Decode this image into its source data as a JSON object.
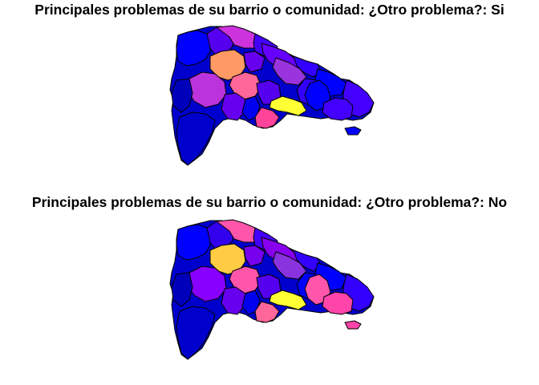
{
  "panels": [
    {
      "title": "Principales problemas de su barrio o comunidad: ¿Otro problema?: Si",
      "fills": {
        "base": "#0000cc",
        "nw1": "#0000ff",
        "nw2": "#5500ee",
        "north1": "#cc33dd",
        "north2": "#4400ff",
        "ne1": "#6600ff",
        "ne2": "#3300ff",
        "center_n": "#ff9966",
        "cn2": "#6600ee",
        "center_e": "#9933dd",
        "east1": "#0000ff",
        "east2": "#4400ff",
        "east3": "#3300ff",
        "west_c": "#bb33dd",
        "center": "#ff6699",
        "center_s": "#6600ee",
        "south1": "#0000ee",
        "south2": "#5500ee",
        "capital": "#ffff33",
        "southc": "#ff4499",
        "se1": "#0000ff",
        "se2": "#4400ff",
        "west_s": "#0000bb",
        "sw": "#0000cc",
        "saona": "#0000ff"
      }
    },
    {
      "title": "Principales problemas de su barrio o comunidad: ¿Otro problema?: No",
      "fills": {
        "base": "#0000cc",
        "nw1": "#0000ff",
        "nw2": "#3300ee",
        "north1": "#ff55aa",
        "north2": "#4400ff",
        "ne1": "#8800ee",
        "ne2": "#3300ff",
        "center_n": "#ffcc44",
        "cn2": "#7700ee",
        "center_e": "#8833dd",
        "east1": "#0000ff",
        "east2": "#3300ff",
        "east3": "#0000ff",
        "west_c": "#8800ff",
        "center": "#ff55aa",
        "center_s": "#6600ee",
        "south1": "#0000ee",
        "south2": "#5500ee",
        "capital": "#ffff33",
        "southc": "#ff6699",
        "se1": "#ff55aa",
        "se2": "#ff44aa",
        "west_s": "#0000bb",
        "sw": "#0000cc",
        "saona": "#ff44aa"
      }
    }
  ]
}
